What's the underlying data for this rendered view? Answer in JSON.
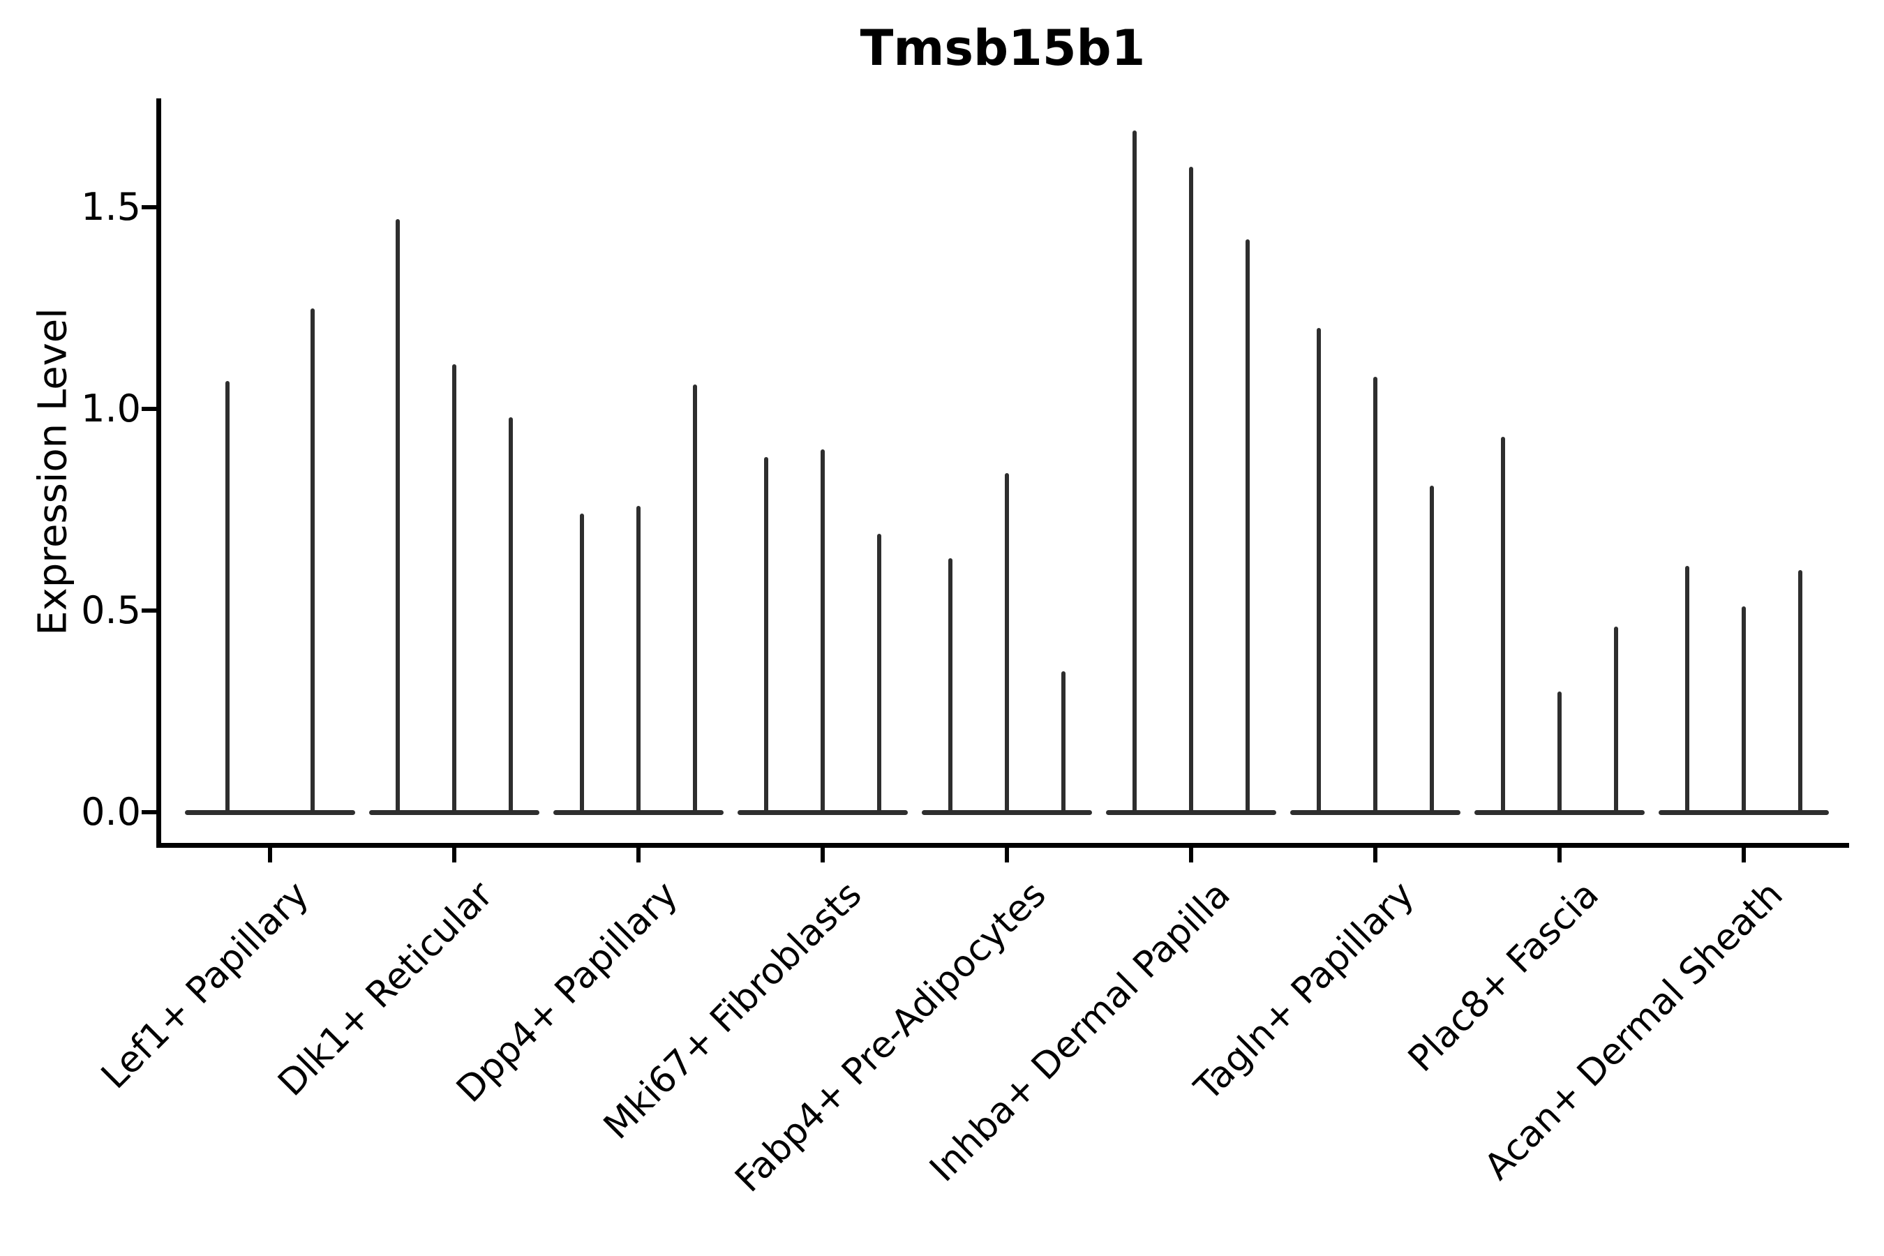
{
  "title": "Tmsb15b1",
  "y_axis": {
    "label": "Expression Level",
    "tick_labels": [
      "0.0",
      "0.5",
      "1.0",
      "1.5"
    ]
  },
  "style": {
    "violin_color": "#2e2e2e",
    "axis_color": "#000000",
    "background": "#ffffff",
    "text_color": "#000000"
  },
  "chart_data": {
    "type": "violin",
    "title": "Tmsb15b1",
    "xlabel": "",
    "ylabel": "Expression Level",
    "yticks": [
      0.0,
      0.5,
      1.0,
      1.5
    ],
    "ylim": [
      -0.08,
      1.77
    ],
    "grid": false,
    "legend": false,
    "note": "Needle-thin violins (sparse expression): each violin is a flat disc at 0 with a thin spike rising to its maximum expression value; peaks listed left-to-right within each category.",
    "categories": [
      "Lef1+ Papillary",
      "Dlk1+ Reticular",
      "Dpp4+ Papillary",
      "Mki67+ Fibroblasts",
      "Fabp4+ Pre-Adipocytes",
      "Inhba+ Dermal Papilla",
      "Tagln+ Papillary",
      "Plac8+ Fascia",
      "Acan+ Dermal Sheath"
    ],
    "series": [
      {
        "category": "Lef1+ Papillary",
        "violin_peaks": [
          1.07,
          1.25
        ]
      },
      {
        "category": "Dlk1+ Reticular",
        "violin_peaks": [
          1.47,
          1.11,
          0.98
        ]
      },
      {
        "category": "Dpp4+ Papillary",
        "violin_peaks": [
          0.74,
          0.76,
          1.06
        ]
      },
      {
        "category": "Mki67+ Fibroblasts",
        "violin_peaks": [
          0.88,
          0.9,
          0.69
        ]
      },
      {
        "category": "Fabp4+ Pre-Adipocytes",
        "violin_peaks": [
          0.63,
          0.84,
          0.35
        ]
      },
      {
        "category": "Inhba+ Dermal Papilla",
        "violin_peaks": [
          1.69,
          1.6,
          1.42
        ]
      },
      {
        "category": "Tagln+ Papillary",
        "violin_peaks": [
          1.2,
          1.08,
          0.81
        ]
      },
      {
        "category": "Plac8+ Fascia",
        "violin_peaks": [
          0.93,
          0.3,
          0.46
        ]
      },
      {
        "category": "Acan+ Dermal Sheath",
        "violin_peaks": [
          0.61,
          0.51,
          0.6
        ]
      }
    ],
    "violin_base_value": 0.0
  }
}
